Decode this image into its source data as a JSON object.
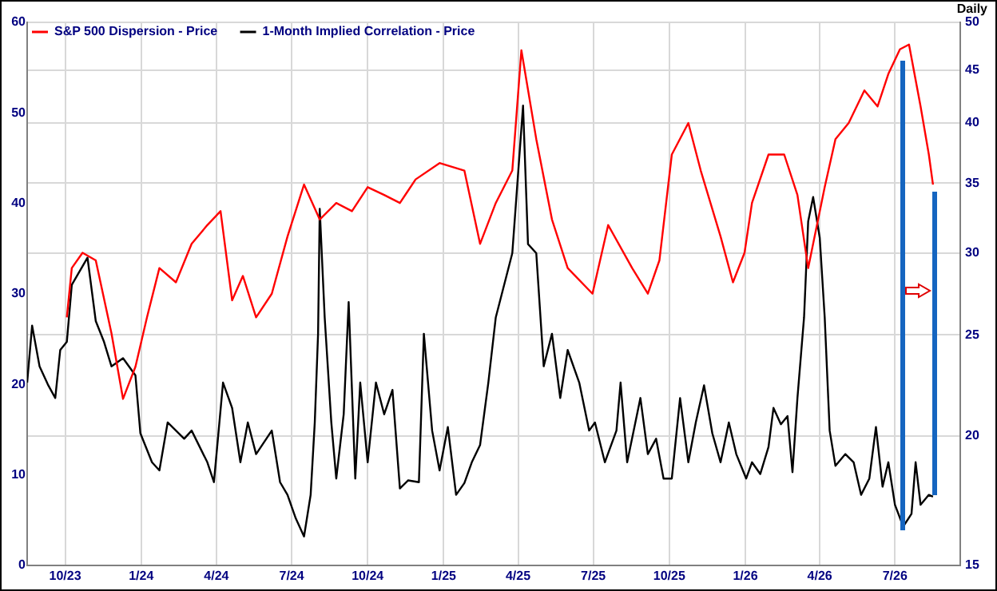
{
  "chart_data": {
    "type": "line",
    "annotations": [
      "Daily"
    ],
    "legend": "top left",
    "grid": true,
    "log": "y2",
    "marker": "none",
    "line_style": "solid",
    "xlim": [
      "2023-08-16",
      "2026-09-18"
    ],
    "xticks": [
      {
        "value": "2023-10-01",
        "label": "10/23"
      },
      {
        "value": "2024-01-01",
        "label": "1/24"
      },
      {
        "value": "2024-04-01",
        "label": "4/24"
      },
      {
        "value": "2024-07-01",
        "label": "7/24"
      },
      {
        "value": "2024-10-01",
        "label": "10/24"
      },
      {
        "value": "2025-01-01",
        "label": "1/25"
      },
      {
        "value": "2025-04-01",
        "label": "4/25"
      },
      {
        "value": "2025-07-01",
        "label": "7/25"
      },
      {
        "value": "2025-10-01",
        "label": "10/25"
      },
      {
        "value": "2026-01-01",
        "label": "1/26"
      },
      {
        "value": "2026-04-01",
        "label": "4/26"
      },
      {
        "value": "2026-07-01",
        "label": "7/26"
      }
    ],
    "ylim": [
      0,
      60
    ],
    "yticks": [
      0,
      10,
      20,
      30,
      40,
      50,
      60
    ],
    "y2lim": [
      15,
      50
    ],
    "y2ticks": [
      15,
      20,
      25,
      30,
      35,
      40,
      45,
      50
    ],
    "series": [
      {
        "name": "S&P 500 Dispersion - Price",
        "color": "#ff0000",
        "axis": "y2",
        "x": [
          "2023-10-03",
          "2023-10-09",
          "2023-10-22",
          "2023-11-07",
          "2023-11-26",
          "2023-12-10",
          "2023-12-25",
          "2024-01-08",
          "2024-01-23",
          "2024-02-12",
          "2024-03-02",
          "2024-03-21",
          "2024-04-06",
          "2024-04-20",
          "2024-05-03",
          "2024-05-19",
          "2024-06-07",
          "2024-06-26",
          "2024-07-16",
          "2024-08-04",
          "2024-08-24",
          "2024-09-12",
          "2024-10-01",
          "2024-10-21",
          "2024-11-09",
          "2024-11-28",
          "2024-12-27",
          "2025-01-26",
          "2025-02-14",
          "2025-03-05",
          "2025-03-25",
          "2025-04-05",
          "2025-04-23",
          "2025-05-12",
          "2025-05-31",
          "2025-06-30",
          "2025-07-19",
          "2025-08-17",
          "2025-09-05",
          "2025-09-19",
          "2025-10-04",
          "2025-10-24",
          "2025-11-08",
          "2025-12-02",
          "2025-12-17",
          "2025-12-31",
          "2026-01-09",
          "2026-01-29",
          "2026-02-17",
          "2026-03-05",
          "2026-03-18",
          "2026-04-07",
          "2026-04-20",
          "2026-05-06",
          "2026-05-25",
          "2026-06-10",
          "2026-06-23",
          "2026-07-07",
          "2026-07-18",
          "2026-08-01",
          "2026-08-11",
          "2026-08-16"
        ],
        "values": [
          26.0,
          29.0,
          30.0,
          29.5,
          25.1,
          21.7,
          23.3,
          26.0,
          29.0,
          28.1,
          30.6,
          31.9,
          32.9,
          27.0,
          28.5,
          26.0,
          27.4,
          31.1,
          34.9,
          32.3,
          33.5,
          32.9,
          34.7,
          34.1,
          33.5,
          35.3,
          36.6,
          36.0,
          30.6,
          33.5,
          36.0,
          47.0,
          38.6,
          32.3,
          29.0,
          27.4,
          31.9,
          29.0,
          27.4,
          29.5,
          37.3,
          40.0,
          36.0,
          31.1,
          28.1,
          30.0,
          33.5,
          37.3,
          37.3,
          34.1,
          29.0,
          34.7,
          38.6,
          40.0,
          43.0,
          41.5,
          44.6,
          47.1,
          47.6,
          41.5,
          37.3,
          34.9
        ]
      },
      {
        "name": "1-Month Implied Correlation - Price",
        "color": "#000000",
        "axis": "y",
        "x": [
          "2023-08-16",
          "2023-08-22",
          "2023-08-31",
          "2023-09-10",
          "2023-09-19",
          "2023-09-25",
          "2023-10-03",
          "2023-10-09",
          "2023-10-28",
          "2023-11-07",
          "2023-11-17",
          "2023-11-26",
          "2023-12-10",
          "2023-12-25",
          "2023-12-31",
          "2024-01-14",
          "2024-01-23",
          "2024-02-02",
          "2024-02-22",
          "2024-03-02",
          "2024-03-21",
          "2024-03-29",
          "2024-04-09",
          "2024-04-20",
          "2024-04-30",
          "2024-05-09",
          "2024-05-19",
          "2024-06-07",
          "2024-06-17",
          "2024-06-26",
          "2024-07-06",
          "2024-07-16",
          "2024-07-24",
          "2024-07-29",
          "2024-08-02",
          "2024-08-04",
          "2024-08-10",
          "2024-08-18",
          "2024-08-24",
          "2024-09-02",
          "2024-09-08",
          "2024-09-16",
          "2024-09-22",
          "2024-10-01",
          "2024-10-11",
          "2024-10-21",
          "2024-10-31",
          "2024-11-09",
          "2024-11-19",
          "2024-12-02",
          "2024-12-08",
          "2024-12-18",
          "2024-12-27",
          "2025-01-06",
          "2025-01-16",
          "2025-01-26",
          "2025-02-04",
          "2025-02-14",
          "2025-02-24",
          "2025-03-05",
          "2025-03-25",
          "2025-04-07",
          "2025-04-13",
          "2025-04-23",
          "2025-05-02",
          "2025-05-12",
          "2025-05-22",
          "2025-05-31",
          "2025-06-14",
          "2025-06-26",
          "2025-07-03",
          "2025-07-15",
          "2025-07-29",
          "2025-08-03",
          "2025-08-11",
          "2025-08-27",
          "2025-09-05",
          "2025-09-15",
          "2025-09-24",
          "2025-10-04",
          "2025-10-14",
          "2025-10-24",
          "2025-11-02",
          "2025-11-12",
          "2025-11-22",
          "2025-12-02",
          "2025-12-12",
          "2025-12-21",
          "2026-01-02",
          "2026-01-09",
          "2026-01-19",
          "2026-01-29",
          "2026-02-04",
          "2026-02-13",
          "2026-02-21",
          "2026-02-27",
          "2026-03-05",
          "2026-03-13",
          "2026-03-18",
          "2026-03-24",
          "2026-04-01",
          "2026-04-07",
          "2026-04-13",
          "2026-04-20",
          "2026-05-02",
          "2026-05-12",
          "2026-05-21",
          "2026-05-31",
          "2026-06-08",
          "2026-06-16",
          "2026-06-23",
          "2026-07-01",
          "2026-07-11",
          "2026-07-21",
          "2026-07-26",
          "2026-08-01",
          "2026-08-11",
          "2026-08-16"
        ],
        "values": [
          20.2,
          26.5,
          22.0,
          20.0,
          18.5,
          23.8,
          24.7,
          31.0,
          34.0,
          27.0,
          24.7,
          22.0,
          22.9,
          21.0,
          14.6,
          11.4,
          10.5,
          15.8,
          14.0,
          14.9,
          11.4,
          9.2,
          20.2,
          17.4,
          11.4,
          15.8,
          12.3,
          14.9,
          9.2,
          7.8,
          5.2,
          3.2,
          7.8,
          15.8,
          25.6,
          39.4,
          27.4,
          15.8,
          9.6,
          16.7,
          29.1,
          9.6,
          20.2,
          11.4,
          20.2,
          16.7,
          19.4,
          8.5,
          9.4,
          9.2,
          25.6,
          14.9,
          10.5,
          15.3,
          7.8,
          9.1,
          11.4,
          13.3,
          20.2,
          27.4,
          34.5,
          50.8,
          35.5,
          34.5,
          22.0,
          25.6,
          18.5,
          23.8,
          20.2,
          14.9,
          15.8,
          11.4,
          14.9,
          20.2,
          11.4,
          18.5,
          12.3,
          14.0,
          9.6,
          9.6,
          18.5,
          11.4,
          15.8,
          19.9,
          14.6,
          11.4,
          15.8,
          12.3,
          9.6,
          11.4,
          10.1,
          13.1,
          17.4,
          15.6,
          16.5,
          10.3,
          18.5,
          27.4,
          38.0,
          40.7,
          36.2,
          27.4,
          14.9,
          11.0,
          12.3,
          11.4,
          7.8,
          9.6,
          15.3,
          8.7,
          11.4,
          6.7,
          4.3,
          5.7,
          11.4,
          6.7,
          7.8,
          7.6
        ]
      }
    ]
  }
}
